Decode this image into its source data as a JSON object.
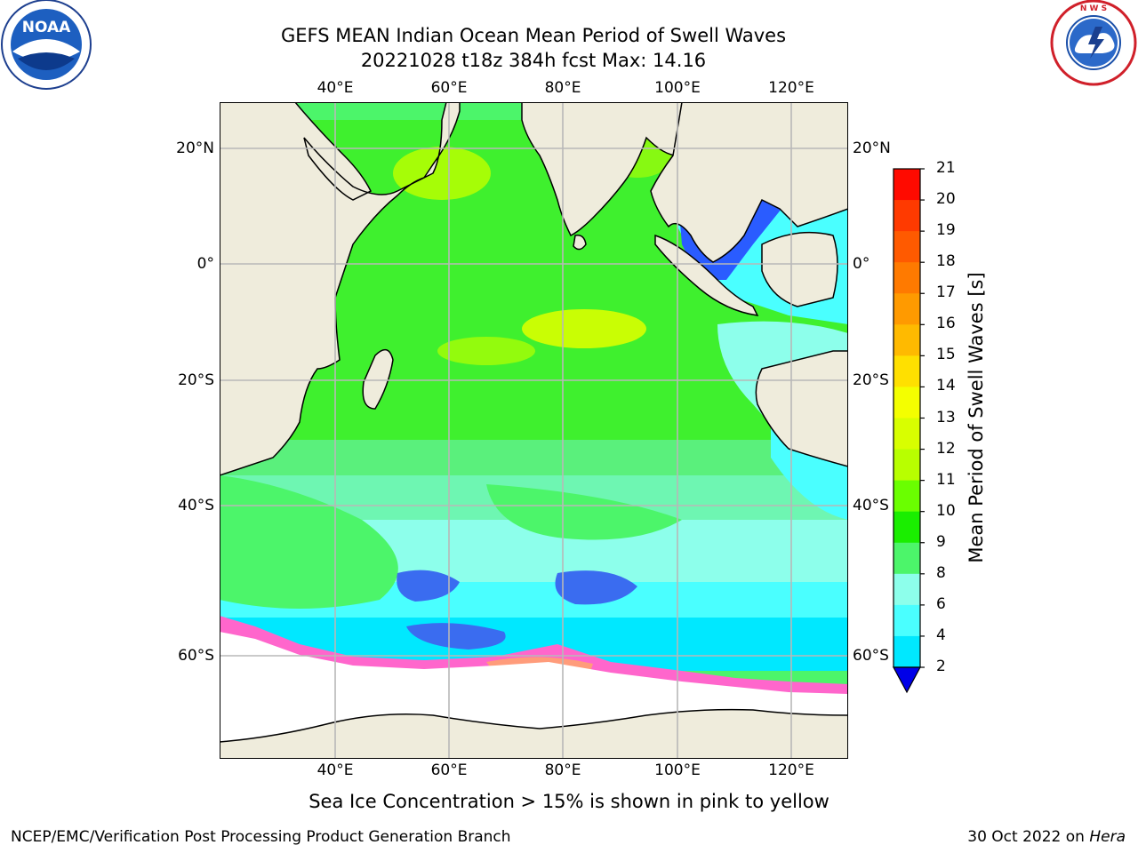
{
  "title": {
    "line1": "GEFS MEAN Indian Ocean Mean Period of Swell Waves",
    "line2": "20221028 t18z 384h fcst   Max: 14.16"
  },
  "logos": {
    "left": "NOAA",
    "right_ring_text": "NATIONAL WEATHER SERVICE"
  },
  "map": {
    "lon_ticks": [
      "40°E",
      "60°E",
      "80°E",
      "100°E",
      "120°E"
    ],
    "lat_ticks": [
      "20°N",
      "0°",
      "20°S",
      "40°S",
      "60°S"
    ],
    "colors": {
      "land": "#efecdc",
      "grid": "#b8b8b8",
      "ice_white": "#ffffff"
    }
  },
  "colorbar": {
    "label": "Mean Period of Swell Waves [s]",
    "ticks": [
      "21",
      "20",
      "19",
      "18",
      "17",
      "16",
      "15",
      "14",
      "13",
      "12",
      "11",
      "10",
      "9",
      "8",
      "6",
      "4",
      "2"
    ],
    "colors": [
      "#ff0a00",
      "#ff3a00",
      "#ff5a00",
      "#ff7a00",
      "#ff9a00",
      "#ffba00",
      "#ffe000",
      "#f4ff00",
      "#d8ff00",
      "#b8ff00",
      "#6aff00",
      "#1aee00",
      "#4cf56a",
      "#8dffeb",
      "#4affff",
      "#00e8ff",
      "#00a8ff",
      "#0050ff",
      "#0000e8"
    ]
  },
  "caption": "Sea Ice Concentration > 15% is shown in pink to yellow",
  "footer": {
    "left": "NCEP/EMC/Verification Post Processing Product Generation Branch",
    "right_prefix": "30 Oct 2022 on ",
    "right_host": "Hera"
  }
}
